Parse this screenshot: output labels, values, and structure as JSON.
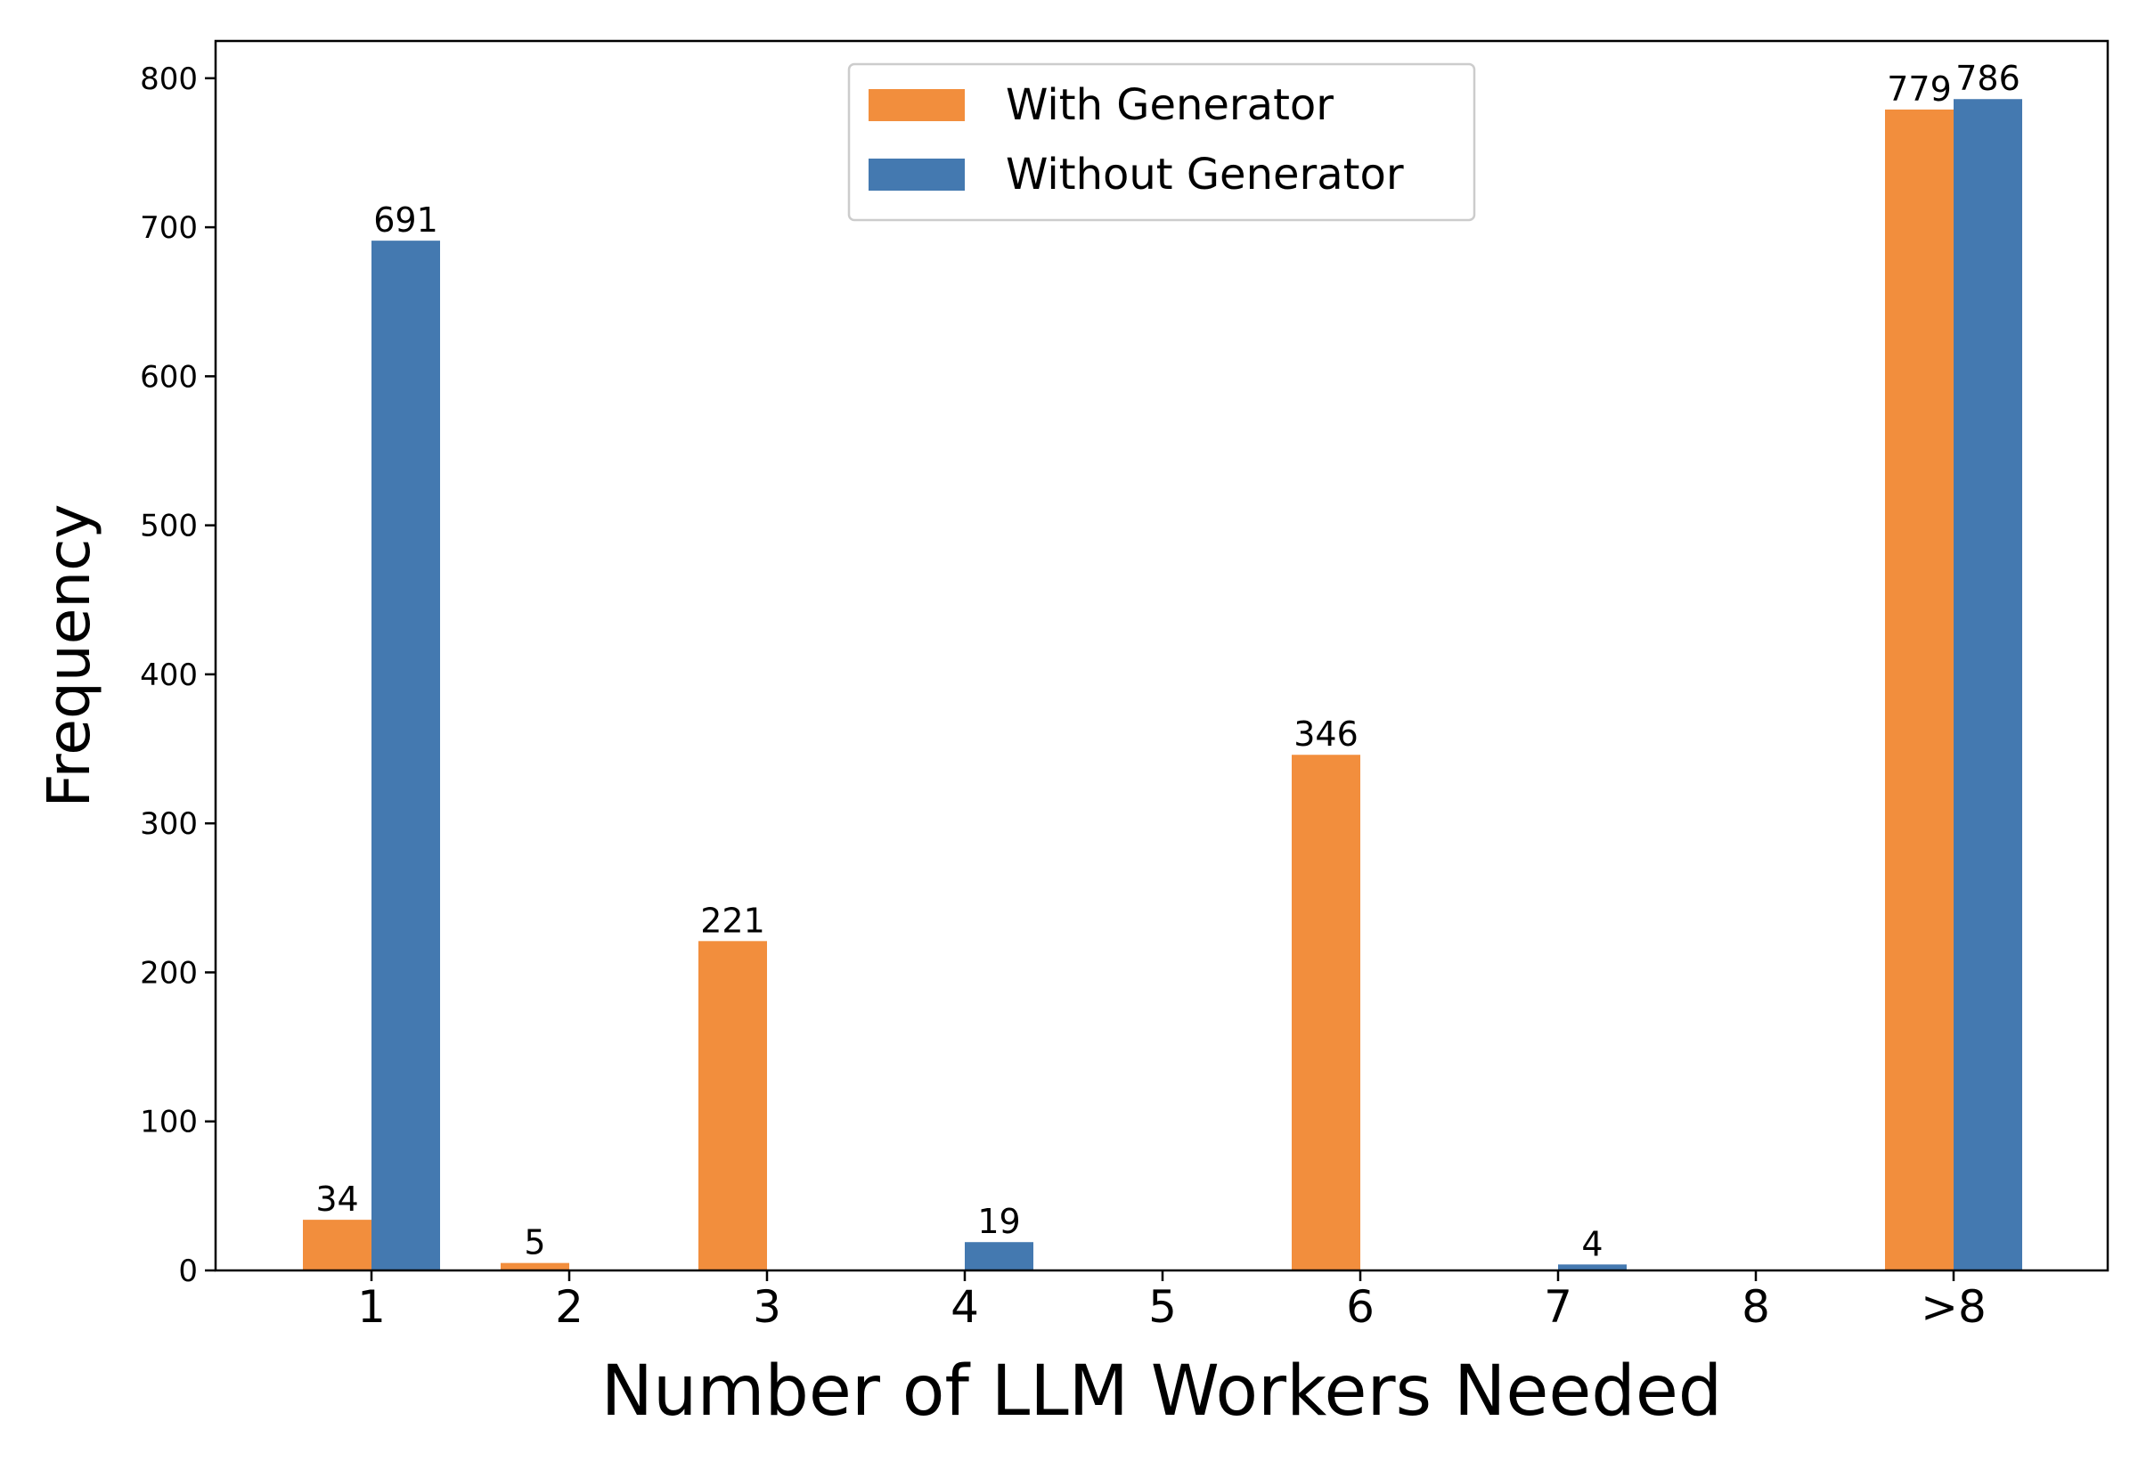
{
  "chart_data": {
    "type": "bar",
    "categories": [
      "1",
      "2",
      "3",
      "4",
      "5",
      "6",
      "7",
      "8",
      ">8"
    ],
    "series": [
      {
        "name": "With Generator",
        "color": "#F28E3D",
        "values": [
          34,
          5,
          221,
          0,
          0,
          346,
          0,
          0,
          779
        ],
        "labels": [
          "34",
          "5",
          "221",
          "",
          "",
          "346",
          "",
          "",
          "779"
        ]
      },
      {
        "name": "Without Generator",
        "color": "#4479B0",
        "values": [
          691,
          0,
          0,
          19,
          0,
          0,
          4,
          0,
          786
        ],
        "labels": [
          "691",
          "",
          "",
          "19",
          "",
          "",
          "4",
          "",
          "786"
        ]
      }
    ],
    "title": "",
    "xlabel": "Number of LLM Workers Needed",
    "ylabel": "Frequency",
    "ylim": [
      0,
      825
    ],
    "yticks": [
      0,
      100,
      200,
      300,
      400,
      500,
      600,
      700,
      800
    ],
    "grid": false,
    "legend_position": "top-center"
  }
}
